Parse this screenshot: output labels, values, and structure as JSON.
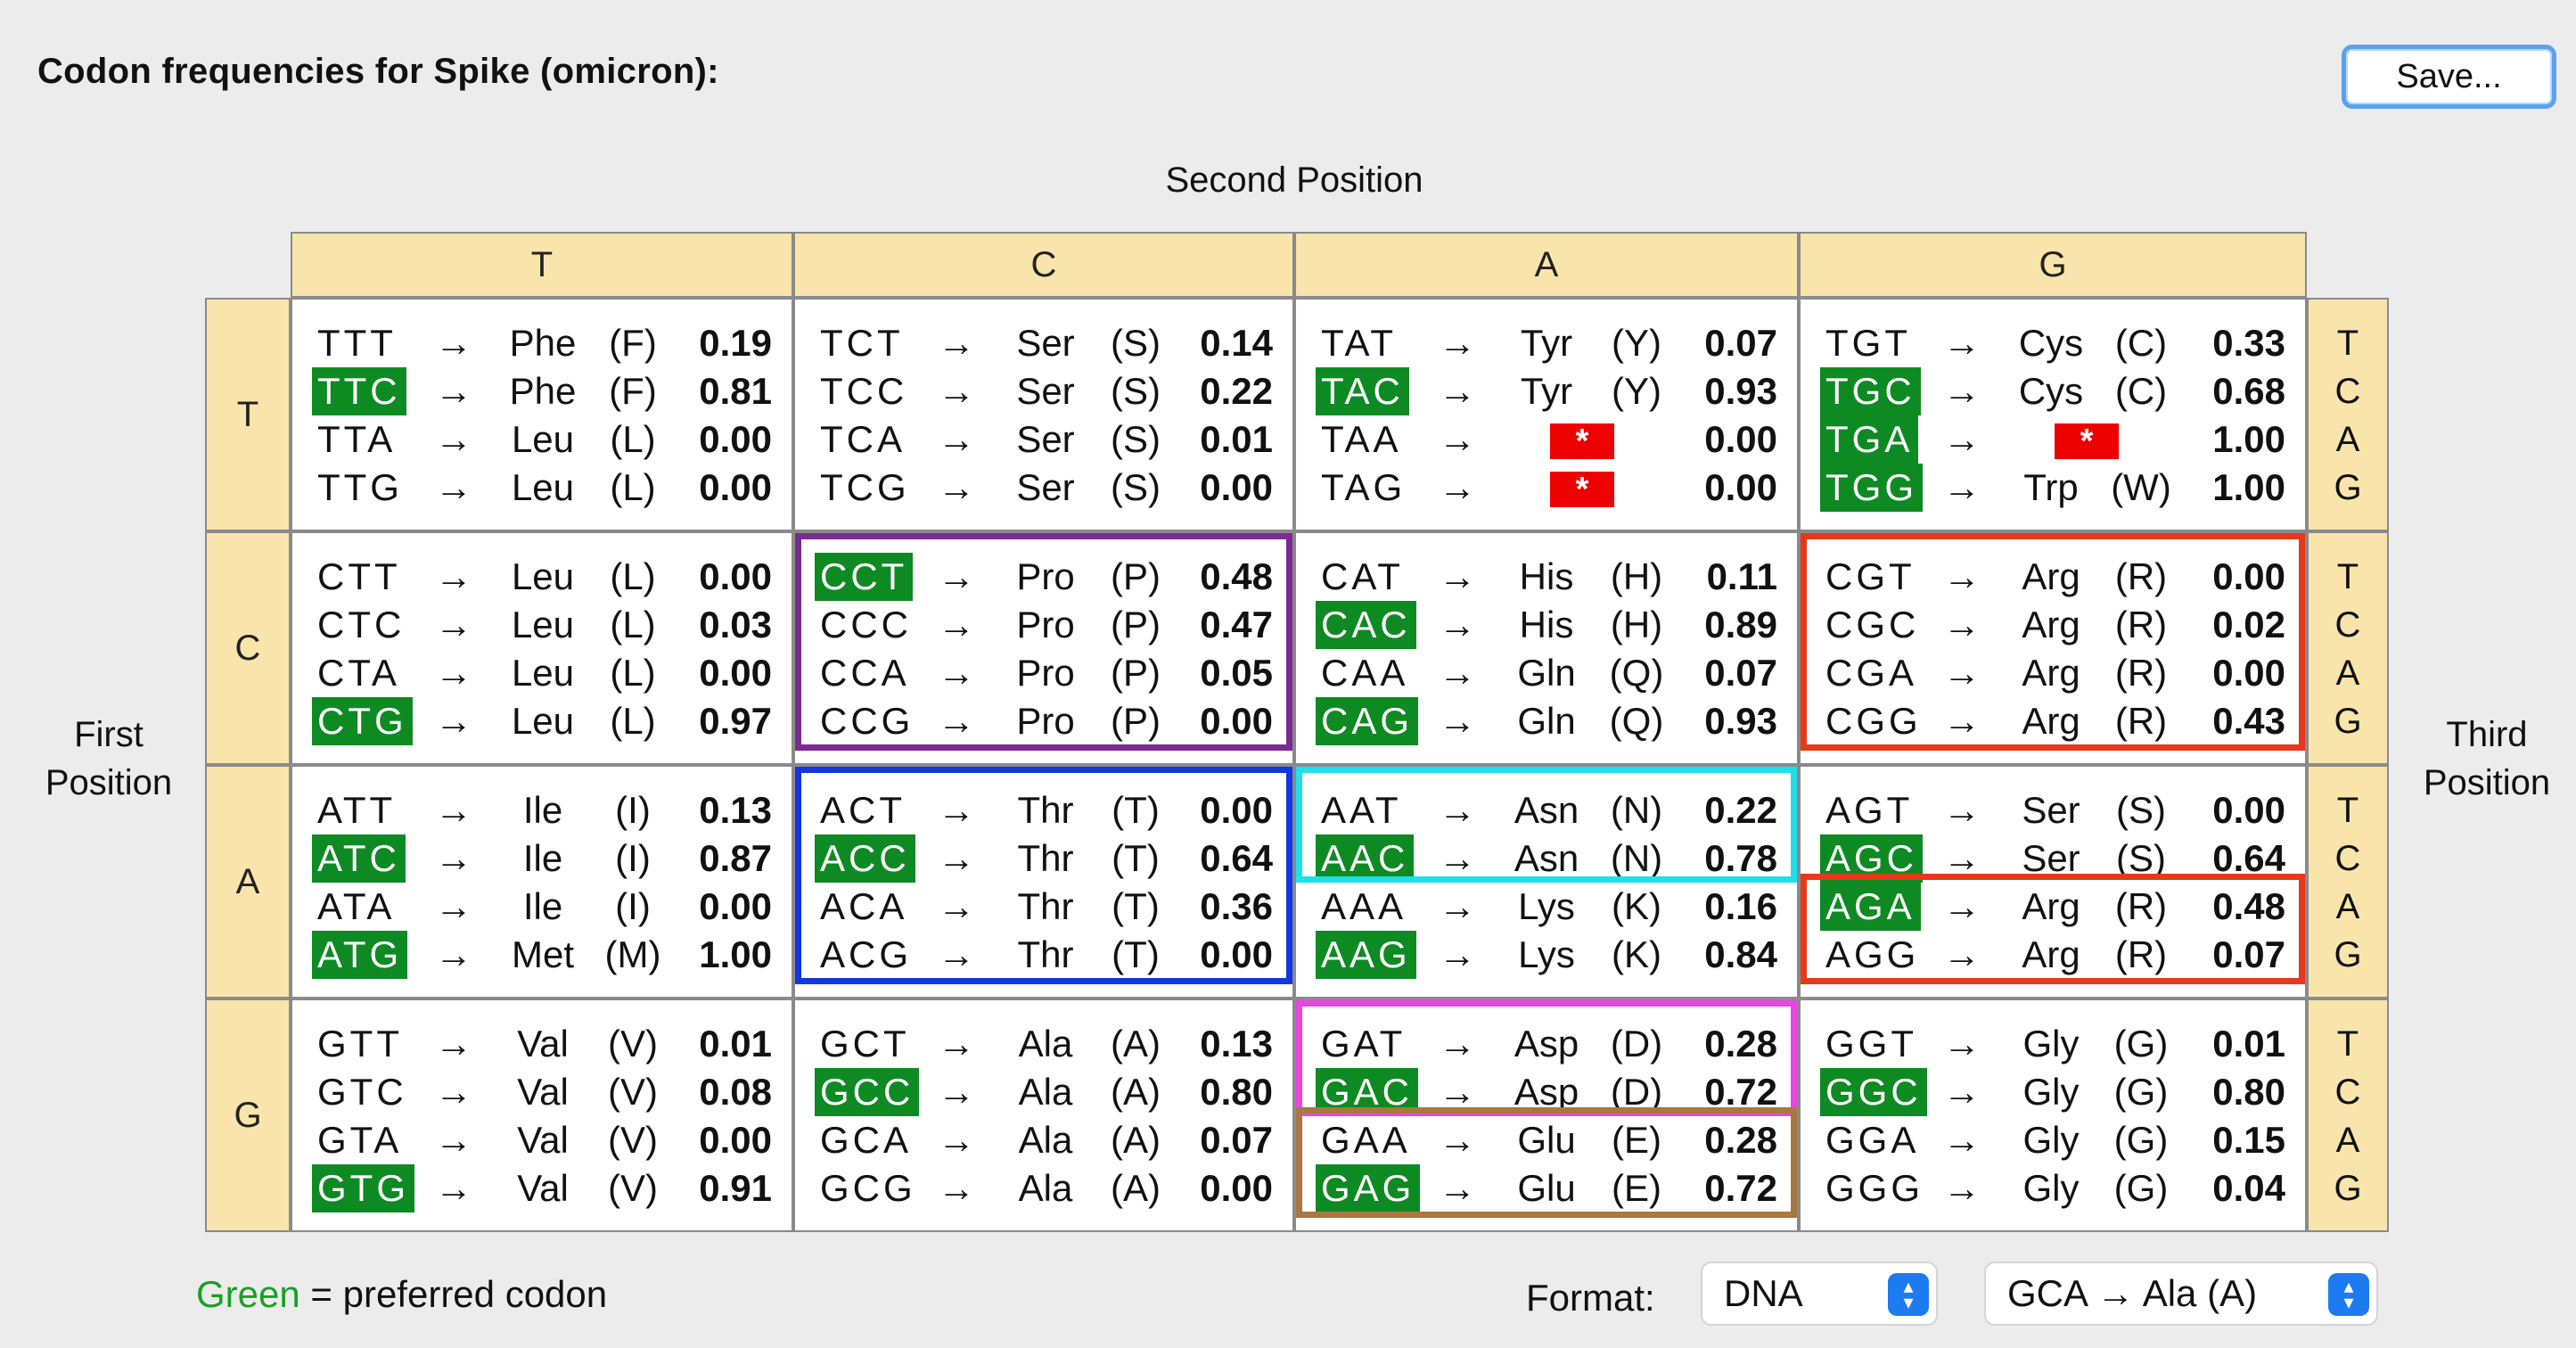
{
  "title": "Codon frequencies for Spike (omicron):",
  "save_button": "Save...",
  "second_position_label": "Second Position",
  "first_position_label": "First\nPosition",
  "third_position_label": "Third\nPosition",
  "second_headers": [
    "T",
    "C",
    "A",
    "G"
  ],
  "first_headers": [
    "T",
    "C",
    "A",
    "G"
  ],
  "third_headers": [
    "T",
    "C",
    "A",
    "G"
  ],
  "arrow": "→",
  "blocks": [
    [
      [
        {
          "codon": "TTT",
          "aa": "Phe",
          "abbr": "(F)",
          "freq": "0.19",
          "pref": false
        },
        {
          "codon": "TTC",
          "aa": "Phe",
          "abbr": "(F)",
          "freq": "0.81",
          "pref": true
        },
        {
          "codon": "TTA",
          "aa": "Leu",
          "abbr": "(L)",
          "freq": "0.00",
          "pref": false
        },
        {
          "codon": "TTG",
          "aa": "Leu",
          "abbr": "(L)",
          "freq": "0.00",
          "pref": false
        }
      ],
      [
        {
          "codon": "TCT",
          "aa": "Ser",
          "abbr": "(S)",
          "freq": "0.14",
          "pref": false
        },
        {
          "codon": "TCC",
          "aa": "Ser",
          "abbr": "(S)",
          "freq": "0.22",
          "pref": false
        },
        {
          "codon": "TCA",
          "aa": "Ser",
          "abbr": "(S)",
          "freq": "0.01",
          "pref": false
        },
        {
          "codon": "TCG",
          "aa": "Ser",
          "abbr": "(S)",
          "freq": "0.00",
          "pref": false
        }
      ],
      [
        {
          "codon": "TAT",
          "aa": "Tyr",
          "abbr": "(Y)",
          "freq": "0.07",
          "pref": false
        },
        {
          "codon": "TAC",
          "aa": "Tyr",
          "abbr": "(Y)",
          "freq": "0.93",
          "pref": true
        },
        {
          "codon": "TAA",
          "aa": "",
          "abbr": "",
          "freq": "0.00",
          "pref": false,
          "stop": "*"
        },
        {
          "codon": "TAG",
          "aa": "",
          "abbr": "",
          "freq": "0.00",
          "pref": false,
          "stop": "*"
        }
      ],
      [
        {
          "codon": "TGT",
          "aa": "Cys",
          "abbr": "(C)",
          "freq": "0.33",
          "pref": false
        },
        {
          "codon": "TGC",
          "aa": "Cys",
          "abbr": "(C)",
          "freq": "0.68",
          "pref": true
        },
        {
          "codon": "TGA",
          "aa": "",
          "abbr": "",
          "freq": "1.00",
          "pref": true,
          "stop": "*"
        },
        {
          "codon": "TGG",
          "aa": "Trp",
          "abbr": "(W)",
          "freq": "1.00",
          "pref": true
        }
      ]
    ],
    [
      [
        {
          "codon": "CTT",
          "aa": "Leu",
          "abbr": "(L)",
          "freq": "0.00",
          "pref": false
        },
        {
          "codon": "CTC",
          "aa": "Leu",
          "abbr": "(L)",
          "freq": "0.03",
          "pref": false
        },
        {
          "codon": "CTA",
          "aa": "Leu",
          "abbr": "(L)",
          "freq": "0.00",
          "pref": false
        },
        {
          "codon": "CTG",
          "aa": "Leu",
          "abbr": "(L)",
          "freq": "0.97",
          "pref": true
        }
      ],
      [
        {
          "codon": "CCT",
          "aa": "Pro",
          "abbr": "(P)",
          "freq": "0.48",
          "pref": true
        },
        {
          "codon": "CCC",
          "aa": "Pro",
          "abbr": "(P)",
          "freq": "0.47",
          "pref": false
        },
        {
          "codon": "CCA",
          "aa": "Pro",
          "abbr": "(P)",
          "freq": "0.05",
          "pref": false
        },
        {
          "codon": "CCG",
          "aa": "Pro",
          "abbr": "(P)",
          "freq": "0.00",
          "pref": false
        }
      ],
      [
        {
          "codon": "CAT",
          "aa": "His",
          "abbr": "(H)",
          "freq": "0.11",
          "pref": false
        },
        {
          "codon": "CAC",
          "aa": "His",
          "abbr": "(H)",
          "freq": "0.89",
          "pref": true
        },
        {
          "codon": "CAA",
          "aa": "Gln",
          "abbr": "(Q)",
          "freq": "0.07",
          "pref": false
        },
        {
          "codon": "CAG",
          "aa": "Gln",
          "abbr": "(Q)",
          "freq": "0.93",
          "pref": true
        }
      ],
      [
        {
          "codon": "CGT",
          "aa": "Arg",
          "abbr": "(R)",
          "freq": "0.00",
          "pref": false
        },
        {
          "codon": "CGC",
          "aa": "Arg",
          "abbr": "(R)",
          "freq": "0.02",
          "pref": false
        },
        {
          "codon": "CGA",
          "aa": "Arg",
          "abbr": "(R)",
          "freq": "0.00",
          "pref": false
        },
        {
          "codon": "CGG",
          "aa": "Arg",
          "abbr": "(R)",
          "freq": "0.43",
          "pref": false
        }
      ]
    ],
    [
      [
        {
          "codon": "ATT",
          "aa": "Ile",
          "abbr": "(I)",
          "freq": "0.13",
          "pref": false
        },
        {
          "codon": "ATC",
          "aa": "Ile",
          "abbr": "(I)",
          "freq": "0.87",
          "pref": true
        },
        {
          "codon": "ATA",
          "aa": "Ile",
          "abbr": "(I)",
          "freq": "0.00",
          "pref": false
        },
        {
          "codon": "ATG",
          "aa": "Met",
          "abbr": "(M)",
          "freq": "1.00",
          "pref": true
        }
      ],
      [
        {
          "codon": "ACT",
          "aa": "Thr",
          "abbr": "(T)",
          "freq": "0.00",
          "pref": false
        },
        {
          "codon": "ACC",
          "aa": "Thr",
          "abbr": "(T)",
          "freq": "0.64",
          "pref": true
        },
        {
          "codon": "ACA",
          "aa": "Thr",
          "abbr": "(T)",
          "freq": "0.36",
          "pref": false
        },
        {
          "codon": "ACG",
          "aa": "Thr",
          "abbr": "(T)",
          "freq": "0.00",
          "pref": false
        }
      ],
      [
        {
          "codon": "AAT",
          "aa": "Asn",
          "abbr": "(N)",
          "freq": "0.22",
          "pref": false
        },
        {
          "codon": "AAC",
          "aa": "Asn",
          "abbr": "(N)",
          "freq": "0.78",
          "pref": true
        },
        {
          "codon": "AAA",
          "aa": "Lys",
          "abbr": "(K)",
          "freq": "0.16",
          "pref": false
        },
        {
          "codon": "AAG",
          "aa": "Lys",
          "abbr": "(K)",
          "freq": "0.84",
          "pref": true
        }
      ],
      [
        {
          "codon": "AGT",
          "aa": "Ser",
          "abbr": "(S)",
          "freq": "0.00",
          "pref": false
        },
        {
          "codon": "AGC",
          "aa": "Ser",
          "abbr": "(S)",
          "freq": "0.64",
          "pref": true
        },
        {
          "codon": "AGA",
          "aa": "Arg",
          "abbr": "(R)",
          "freq": "0.48",
          "pref": true
        },
        {
          "codon": "AGG",
          "aa": "Arg",
          "abbr": "(R)",
          "freq": "0.07",
          "pref": false
        }
      ]
    ],
    [
      [
        {
          "codon": "GTT",
          "aa": "Val",
          "abbr": "(V)",
          "freq": "0.01",
          "pref": false
        },
        {
          "codon": "GTC",
          "aa": "Val",
          "abbr": "(V)",
          "freq": "0.08",
          "pref": false
        },
        {
          "codon": "GTA",
          "aa": "Val",
          "abbr": "(V)",
          "freq": "0.00",
          "pref": false
        },
        {
          "codon": "GTG",
          "aa": "Val",
          "abbr": "(V)",
          "freq": "0.91",
          "pref": true
        }
      ],
      [
        {
          "codon": "GCT",
          "aa": "Ala",
          "abbr": "(A)",
          "freq": "0.13",
          "pref": false
        },
        {
          "codon": "GCC",
          "aa": "Ala",
          "abbr": "(A)",
          "freq": "0.80",
          "pref": true
        },
        {
          "codon": "GCA",
          "aa": "Ala",
          "abbr": "(A)",
          "freq": "0.07",
          "pref": false
        },
        {
          "codon": "GCG",
          "aa": "Ala",
          "abbr": "(A)",
          "freq": "0.00",
          "pref": false
        }
      ],
      [
        {
          "codon": "GAT",
          "aa": "Asp",
          "abbr": "(D)",
          "freq": "0.28",
          "pref": false
        },
        {
          "codon": "GAC",
          "aa": "Asp",
          "abbr": "(D)",
          "freq": "0.72",
          "pref": true
        },
        {
          "codon": "GAA",
          "aa": "Glu",
          "abbr": "(E)",
          "freq": "0.28",
          "pref": false
        },
        {
          "codon": "GAG",
          "aa": "Glu",
          "abbr": "(E)",
          "freq": "0.72",
          "pref": true
        }
      ],
      [
        {
          "codon": "GGT",
          "aa": "Gly",
          "abbr": "(G)",
          "freq": "0.01",
          "pref": false
        },
        {
          "codon": "GGC",
          "aa": "Gly",
          "abbr": "(G)",
          "freq": "0.80",
          "pref": true
        },
        {
          "codon": "GGA",
          "aa": "Gly",
          "abbr": "(G)",
          "freq": "0.15",
          "pref": false
        },
        {
          "codon": "GGG",
          "aa": "Gly",
          "abbr": "(G)",
          "freq": "0.04",
          "pref": false
        }
      ]
    ]
  ],
  "highlights": [
    {
      "color": "#7b2a92"
    },
    {
      "color": "#e8381a"
    },
    {
      "color": "#1236e0"
    },
    {
      "color": "#1ee0ec"
    },
    {
      "color": "#e8381a"
    },
    {
      "color": "#e944e6"
    },
    {
      "color": "#a87840"
    }
  ],
  "legend": {
    "green_word": "Green",
    "rest": " = preferred codon"
  },
  "format_label": "Format:",
  "format_select": "DNA",
  "example_select": "GCA → Ala  (A)",
  "colors": {
    "preferred": "#0e8a23",
    "stop": "#ee0000",
    "header_bg": "#f9e5ab",
    "accent": "#1d7bf2"
  }
}
